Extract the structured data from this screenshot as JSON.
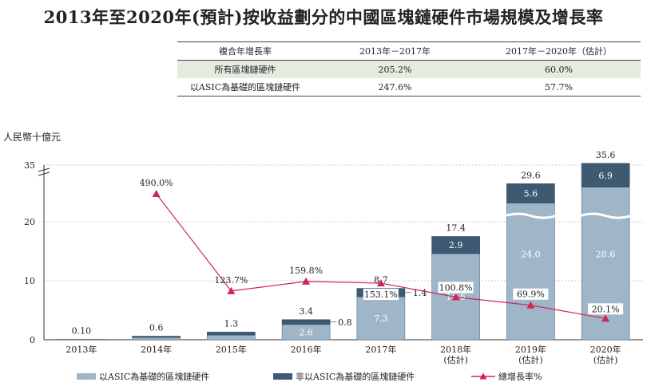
{
  "title": "2013年至2020年(預計)按收益劃分的中國區塊鏈硬件市場規模及增長率",
  "table": {
    "headers": [
      "複合年增長率",
      "2013年－2017年",
      "2017年－2020年（估計）"
    ],
    "rows": [
      [
        "所有區塊鏈硬件",
        "205.2%",
        "60.0%"
      ],
      [
        "以ASIC為基礎的區塊鏈硬件",
        "247.6%",
        "57.7%"
      ]
    ]
  },
  "colors": {
    "asic": "#9fb6c9",
    "non_asic": "#3e5a73",
    "growth": "#d0254f",
    "grid": "#bbbbbb"
  },
  "chart_data": {
    "type": "bar",
    "stacked": true,
    "ylabel": "人民幣十億元",
    "ylim": [
      0,
      35
    ],
    "yticks": [
      "0",
      "10",
      "20",
      "35"
    ],
    "y_axis_break": true,
    "grid": true,
    "categories": [
      [
        "2013年"
      ],
      [
        "2014年"
      ],
      [
        "2015年"
      ],
      [
        "2016年"
      ],
      [
        "2017年"
      ],
      [
        "2018年",
        "(估計)"
      ],
      [
        "2019年",
        "(估計)"
      ],
      [
        "2020年",
        "(估計)"
      ]
    ],
    "series": [
      {
        "name": "以ASIC為基礎的區塊鏈硬件",
        "values": [
          0.1,
          0.4,
          0.8,
          2.6,
          7.3,
          14.6,
          24.0,
          28.6
        ],
        "labels": [
          "",
          "",
          "",
          "2.6",
          "7.3",
          "14.6",
          "24.0",
          "28.6"
        ]
      },
      {
        "name": "非以ASIC為基礎的區塊鏈硬件",
        "values": [
          0.0,
          0.2,
          0.5,
          0.8,
          1.4,
          2.9,
          5.6,
          6.9
        ],
        "labels": [
          "",
          "",
          "",
          "0.8",
          "1.4",
          "2.9",
          "5.6",
          "6.9"
        ]
      }
    ],
    "totals": [
      "0.10",
      "0.6",
      "1.3",
      "3.4",
      "8.7",
      "17.4",
      "29.6",
      "35.6"
    ],
    "growth_rate": {
      "name": "總增長率%",
      "values": [
        null,
        490.0,
        123.7,
        159.8,
        153.1,
        100.8,
        69.9,
        20.1
      ],
      "labels": [
        "",
        "490.0%",
        "123.7%",
        "159.8%",
        "153.1%",
        "100.8%",
        "69.9%",
        "20.1%"
      ]
    }
  }
}
